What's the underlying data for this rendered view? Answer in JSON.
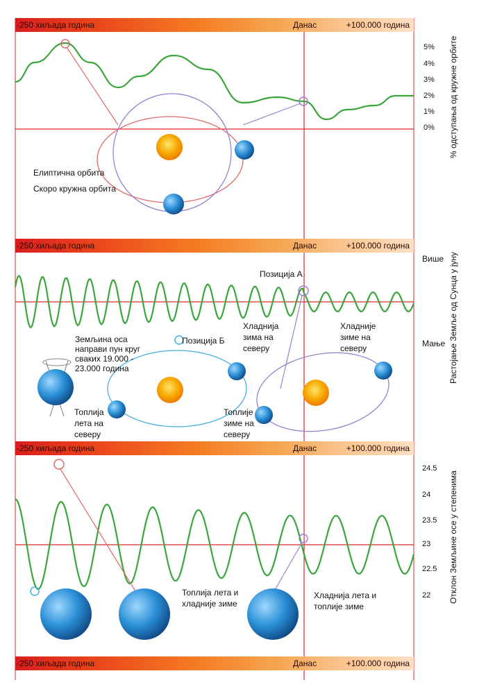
{
  "timeline": {
    "start": "-250 хиљада година",
    "today": "Данас",
    "end": "+100.000 година"
  },
  "panel1": {
    "ticks": [
      "5%",
      "4%",
      "3%",
      "2%",
      "1%",
      "0%"
    ],
    "axis_title": "% одступања од кружне орбите",
    "label_elliptical": "Елиптична орбита",
    "label_circular": "Скоро кружна орбита"
  },
  "panel2": {
    "more": "Више",
    "less": "Мање",
    "axis_title": "Растојање Земље од Сунца у јуну",
    "position_a": "Позиција А",
    "position_b": "Позиција Б",
    "axis_text": "Земљина оса\nнаправи пун круг\nсваких 19.000 -\n23.000 година",
    "colder_winter": "Хладнија\nзима на\nсеверу",
    "colder_winters": "Хладније\nзиме на\nсеверу",
    "warmer_summers": "Топлија\nлета на\nсеверу",
    "warmer_winters": "Топлије\nзиме на\nсеверу"
  },
  "panel3": {
    "ticks": [
      "24.5",
      "24",
      "23.5",
      "23",
      "22.5",
      "22"
    ],
    "axis_title": "Отклон Земљине осе у степенима",
    "warm_summers": "Топлија лета и\nхладније зиме",
    "cold_summers": "Хладнија лета и\nтоплије зиме"
  },
  "colors": {
    "curve": "#3aa53a",
    "axis": "#d9282a",
    "orbit_red": "#e06a6a",
    "orbit_violet": "#9a7fd0",
    "orbit_cyan": "#44aee0",
    "sun": "#f6a400"
  }
}
